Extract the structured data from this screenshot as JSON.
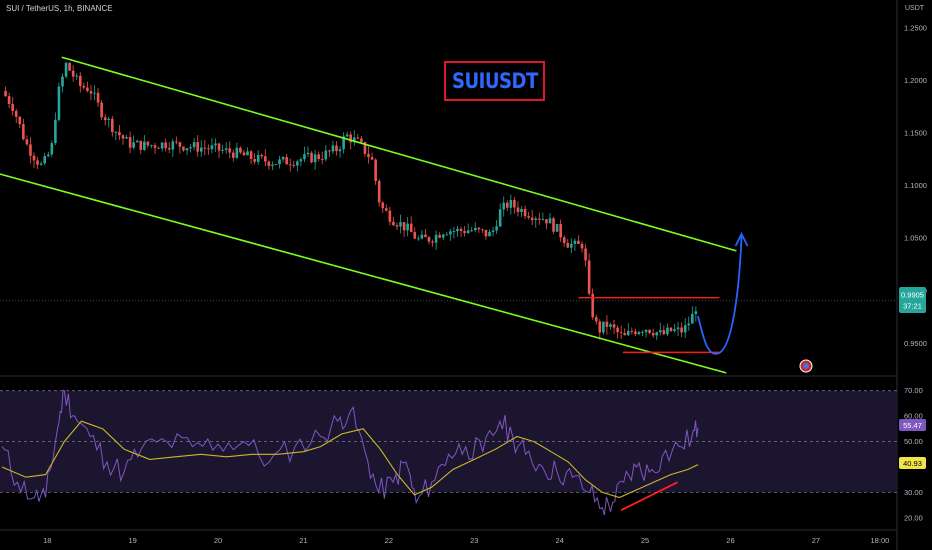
{
  "header": {
    "symbol_line": "SUI / TetherUS, 1h, BINANCE",
    "currency": "USDT"
  },
  "annotation": {
    "banner_text": "SUIUSDT"
  },
  "price_tag": {
    "value": "0.9905",
    "countdown": "37:21"
  },
  "rsi_tags": {
    "rsi": "55.47",
    "ma": "40.93"
  },
  "colors": {
    "background": "#000000",
    "up_candle": "#26a69a",
    "down_candle": "#ef5350",
    "channel_line": "#79ff1f",
    "range_line": "#ff1a1a",
    "forecast_arrow": "#2962ff",
    "rsi_line": "#7e57c2",
    "rsi_ma": "#c9b827",
    "rsi_band": "#1c1530"
  },
  "chart_data": [
    {
      "type": "candlestick",
      "symbol": "SUI / TetherUS",
      "interval": "1h",
      "exchange": "BINANCE",
      "y_unit": "USDT",
      "ylim": [
        0.92,
        1.265
      ],
      "y_ticks": [
        "1.2500",
        "1.2000",
        "1.1500",
        "1.1000",
        "1.0500",
        "1.0000",
        "0.9500"
      ],
      "x_ticks": [
        "18",
        "19",
        "20",
        "21",
        "22",
        "23",
        "24",
        "25",
        "26",
        "27",
        "18:00"
      ],
      "close_path": [
        [
          17.47,
          1.19
        ],
        [
          17.6,
          1.175
        ],
        [
          17.75,
          1.14
        ],
        [
          17.87,
          1.125
        ],
        [
          17.94,
          1.118
        ],
        [
          18.05,
          1.135
        ],
        [
          18.12,
          1.185
        ],
        [
          18.22,
          1.215
        ],
        [
          18.38,
          1.195
        ],
        [
          18.5,
          1.192
        ],
        [
          18.62,
          1.172
        ],
        [
          18.8,
          1.152
        ],
        [
          18.95,
          1.14
        ],
        [
          19.15,
          1.138
        ],
        [
          19.4,
          1.14
        ],
        [
          19.7,
          1.137
        ],
        [
          19.95,
          1.135
        ],
        [
          20.2,
          1.131
        ],
        [
          20.45,
          1.125
        ],
        [
          20.7,
          1.122
        ],
        [
          20.95,
          1.125
        ],
        [
          21.2,
          1.128
        ],
        [
          21.4,
          1.135
        ],
        [
          21.5,
          1.148
        ],
        [
          21.65,
          1.14
        ],
        [
          21.8,
          1.125
        ],
        [
          21.9,
          1.08
        ],
        [
          22.05,
          1.068
        ],
        [
          22.2,
          1.06
        ],
        [
          22.35,
          1.048
        ],
        [
          22.5,
          1.05
        ],
        [
          22.65,
          1.058
        ],
        [
          22.8,
          1.057
        ],
        [
          22.95,
          1.058
        ],
        [
          23.1,
          1.055
        ],
        [
          23.2,
          1.053
        ],
        [
          23.3,
          1.075
        ],
        [
          23.4,
          1.083
        ],
        [
          23.55,
          1.077
        ],
        [
          23.7,
          1.072
        ],
        [
          23.85,
          1.068
        ],
        [
          23.97,
          1.058
        ],
        [
          24.1,
          1.045
        ],
        [
          24.2,
          1.042
        ],
        [
          24.28,
          1.045
        ],
        [
          24.35,
          0.988
        ],
        [
          24.45,
          0.962
        ],
        [
          24.55,
          0.968
        ],
        [
          24.65,
          0.962
        ],
        [
          24.75,
          0.955
        ],
        [
          24.85,
          0.962
        ],
        [
          25.0,
          0.965
        ],
        [
          25.1,
          0.962
        ],
        [
          25.2,
          0.958
        ],
        [
          25.3,
          0.962
        ],
        [
          25.45,
          0.962
        ],
        [
          25.55,
          0.975
        ],
        [
          25.62,
          0.9905
        ]
      ],
      "last_price": 0.9905,
      "channel": {
        "upper": [
          [
            18.17,
            1.222
          ],
          [
            26.07,
            1.038
          ]
        ],
        "lower": [
          [
            17.4,
            1.112
          ],
          [
            25.95,
            0.922
          ]
        ]
      },
      "horizontal_levels": [
        {
          "value": 0.9935,
          "from": 24.22,
          "to": 25.87
        },
        {
          "value": 0.9415,
          "from": 24.74,
          "to": 25.87
        }
      ],
      "forecast_path": [
        [
          25.62,
          0.976
        ],
        [
          25.87,
          0.941
        ],
        [
          26.13,
          1.054
        ]
      ]
    },
    {
      "type": "line",
      "indicator": "RSI",
      "ylim": [
        16,
        75
      ],
      "y_ticks": [
        "70.00",
        "60.00",
        "50.00",
        "30.00",
        "20.00"
      ],
      "band": [
        30,
        70
      ],
      "midline": 50,
      "series": [
        {
          "values": [
            [
              17.47,
              48
            ],
            [
              17.65,
              34
            ],
            [
              17.85,
              28
            ],
            [
              17.98,
              28
            ],
            [
              18.12,
              55
            ],
            [
              18.2,
              70
            ],
            [
              18.32,
              60
            ],
            [
              18.5,
              52
            ],
            [
              18.7,
              42
            ],
            [
              18.9,
              38
            ],
            [
              19.1,
              47
            ],
            [
              19.4,
              50
            ],
            [
              19.7,
              48
            ],
            [
              20.0,
              49
            ],
            [
              20.3,
              50
            ],
            [
              20.6,
              42
            ],
            [
              20.9,
              48
            ],
            [
              21.2,
              52
            ],
            [
              21.4,
              58
            ],
            [
              21.55,
              62
            ],
            [
              21.72,
              46
            ],
            [
              21.88,
              30
            ],
            [
              22.05,
              34
            ],
            [
              22.2,
              42
            ],
            [
              22.32,
              26
            ],
            [
              22.5,
              34
            ],
            [
              22.7,
              45
            ],
            [
              22.9,
              48
            ],
            [
              23.1,
              46
            ],
            [
              23.3,
              58
            ],
            [
              23.45,
              52
            ],
            [
              23.6,
              45
            ],
            [
              23.8,
              40
            ],
            [
              23.97,
              38
            ],
            [
              24.15,
              36
            ],
            [
              24.35,
              30
            ],
            [
              24.5,
              24
            ],
            [
              24.62,
              26
            ],
            [
              24.75,
              34
            ],
            [
              24.9,
              40
            ],
            [
              25.05,
              38
            ],
            [
              25.2,
              44
            ],
            [
              25.4,
              48
            ],
            [
              25.55,
              52
            ],
            [
              25.62,
              55.47
            ]
          ]
        },
        {
          "values": [
            [
              17.47,
              40
            ],
            [
              17.75,
              36
            ],
            [
              17.98,
              37
            ],
            [
              18.2,
              50
            ],
            [
              18.4,
              58
            ],
            [
              18.65,
              55
            ],
            [
              18.9,
              47
            ],
            [
              19.2,
              43
            ],
            [
              19.5,
              44
            ],
            [
              19.8,
              45
            ],
            [
              20.1,
              44
            ],
            [
              20.4,
              45
            ],
            [
              20.7,
              45
            ],
            [
              21.0,
              46
            ],
            [
              21.2,
              48
            ],
            [
              21.45,
              53
            ],
            [
              21.7,
              55
            ],
            [
              21.9,
              47
            ],
            [
              22.1,
              37
            ],
            [
              22.3,
              29
            ],
            [
              22.5,
              32
            ],
            [
              22.75,
              39
            ],
            [
              23.0,
              43
            ],
            [
              23.25,
              47
            ],
            [
              23.5,
              52
            ],
            [
              23.7,
              50
            ],
            [
              23.9,
              46
            ],
            [
              24.1,
              42
            ],
            [
              24.3,
              35
            ],
            [
              24.5,
              30
            ],
            [
              24.7,
              28
            ],
            [
              24.9,
              31
            ],
            [
              25.1,
              34
            ],
            [
              25.3,
              37
            ],
            [
              25.5,
              39
            ],
            [
              25.62,
              40.93
            ]
          ]
        }
      ],
      "trendline": [
        [
          24.72,
          23
        ],
        [
          25.38,
          34
        ]
      ]
    }
  ]
}
